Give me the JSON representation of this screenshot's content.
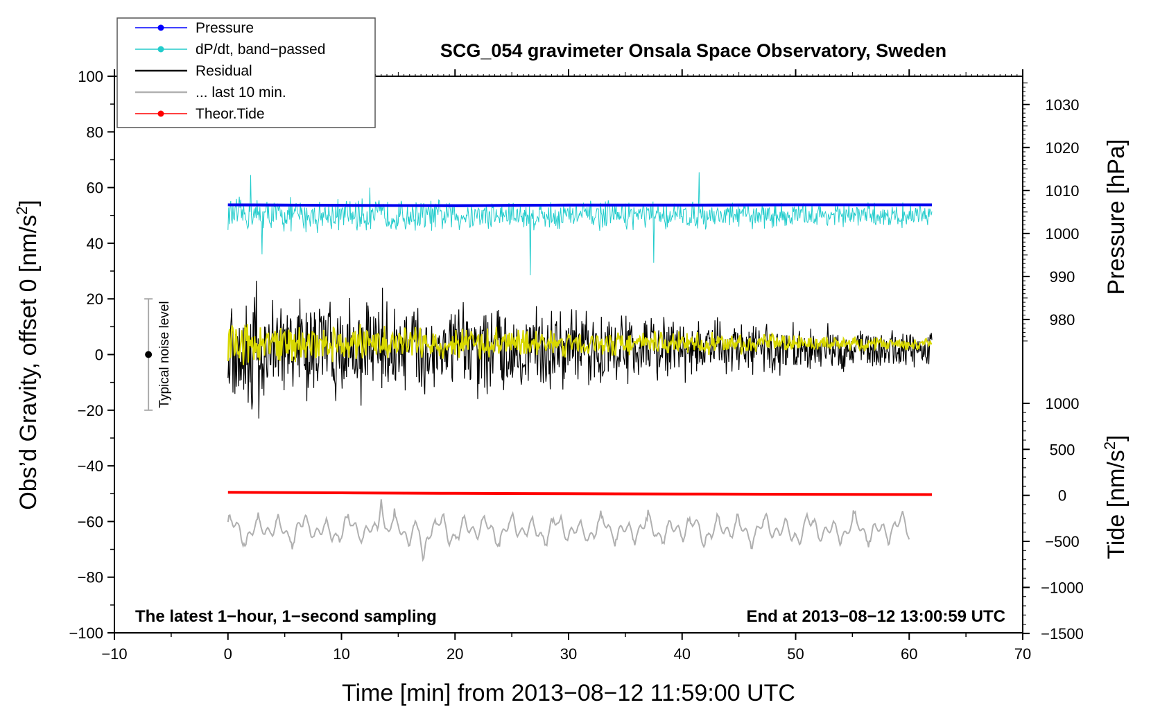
{
  "chart_data": {
    "type": "line",
    "title": "SCG_054 gravimeter Onsala Space Observatory, Sweden",
    "xlabel": "Time [min] from 2013−08−12 11:59:00 UTC",
    "ylabel_left": "Obs’d Gravity, offset 0 [nm/s",
    "ylabel_left_sup": "2",
    "ylabel_left_suffix": "]",
    "ylabel_right_pressure": "Pressure [hPa]",
    "ylabel_right_tide": "Tide [nm/s",
    "ylabel_right_tide_sup": "2",
    "ylabel_right_tide_suffix": "]",
    "xlim": [
      -10,
      70
    ],
    "ylim": [
      -100,
      100
    ],
    "x_ticks": [
      -10,
      0,
      10,
      20,
      30,
      40,
      50,
      60,
      70
    ],
    "x_tick_labels": [
      "−10",
      "0",
      "10",
      "20",
      "30",
      "40",
      "50",
      "60",
      "70"
    ],
    "y_ticks": [
      -100,
      -80,
      -60,
      -40,
      -20,
      0,
      20,
      40,
      60,
      80,
      100
    ],
    "y_tick_labels": [
      "−100",
      "−80",
      "−60",
      "−40",
      "−20",
      "0",
      "20",
      "40",
      "60",
      "80",
      "100"
    ],
    "pressure_axis": {
      "ticks": [
        980,
        990,
        1000,
        1010,
        1020,
        1030
      ],
      "tick_labels": [
        "980",
        "990",
        "1000",
        "1010",
        "1020",
        "1030"
      ],
      "left_value_at_980": 12.6,
      "left_units_per_hpa": 1.545
    },
    "tide_axis": {
      "ticks": [
        -1500,
        -1000,
        -500,
        0,
        500,
        1000
      ],
      "tick_labels": [
        "−1500",
        "−1000",
        "−500",
        "0",
        "500",
        "1000"
      ],
      "left_value_at_0": -50.6,
      "left_units_per_unit": 0.03307
    },
    "legend": [
      {
        "label": "Pressure",
        "color": "#0000ff",
        "marker": true
      },
      {
        "label": "dP/dt, band−passed",
        "color": "#22cccc",
        "marker": true
      },
      {
        "label": "Residual",
        "color": "#000000",
        "marker": false
      },
      {
        "label": "... last 10 min.",
        "color": "#b0b0b0",
        "marker": false
      },
      {
        "label": "Theor.Tide",
        "color": "#ff0000",
        "marker": true
      }
    ],
    "noise_level": {
      "label": "Typical noise level",
      "x": -7,
      "y_low": -20,
      "y_high": 20,
      "y_center": 0
    },
    "notes": {
      "left": "The latest 1−hour, 1−second sampling",
      "right": "End at 2013−08−12 13:00:59 UTC"
    },
    "series": [
      {
        "name": "Pressure",
        "axis": "left",
        "color": "#0000ee",
        "x": [
          0,
          10,
          20,
          30,
          40,
          50,
          62
        ],
        "y": [
          53.8,
          53.6,
          53.5,
          53.7,
          53.7,
          53.8,
          53.8
        ]
      },
      {
        "name": "Theor.Tide",
        "axis": "left",
        "color": "#ff0000",
        "x": [
          0,
          10,
          20,
          30,
          40,
          50,
          62
        ],
        "y": [
          -49.5,
          -49.7,
          -49.9,
          -50.0,
          -50.1,
          -50.2,
          -50.3
        ]
      },
      {
        "name": "dP/dt, band-passed",
        "axis": "left",
        "color": "#22cccc",
        "x_start": 0,
        "x_end": 62,
        "baseline": 50,
        "amplitude_start": 6,
        "amplitude_end": 4,
        "spikes": [
          {
            "x": 2.0,
            "y": 64.5
          },
          {
            "x": 26.6,
            "y": 28.5
          },
          {
            "x": 37.5,
            "y": 33
          },
          {
            "x": 41.5,
            "y": 65.5
          },
          {
            "x": 12.5,
            "y": 60
          },
          {
            "x": 3.0,
            "y": 36
          }
        ]
      },
      {
        "name": "Residual",
        "axis": "left",
        "color": "#000000",
        "x_start": 0,
        "x_end": 62,
        "baseline": 2,
        "amplitude_start": 20,
        "amplitude_end": 6,
        "extremes": [
          {
            "x": 2.5,
            "y": 26.5
          },
          {
            "x": 2.7,
            "y": -23
          },
          {
            "x": 13.6,
            "y": 24
          },
          {
            "x": 22.0,
            "y": -16
          }
        ]
      },
      {
        "name": "Residual (smoothed)",
        "axis": "left",
        "color": "#d8d800",
        "x_start": 0,
        "x_end": 62,
        "baseline": 4,
        "amplitude_start": 7,
        "amplitude_end": 2
      },
      {
        "name": "... last 10 min.",
        "axis": "left",
        "color": "#b0b0b0",
        "x_start": 0,
        "x_end": 60,
        "baseline": -63,
        "amplitude": 5,
        "extremes": [
          {
            "x": 13.5,
            "y": -52
          },
          {
            "x": 17.2,
            "y": -75
          }
        ]
      }
    ]
  }
}
